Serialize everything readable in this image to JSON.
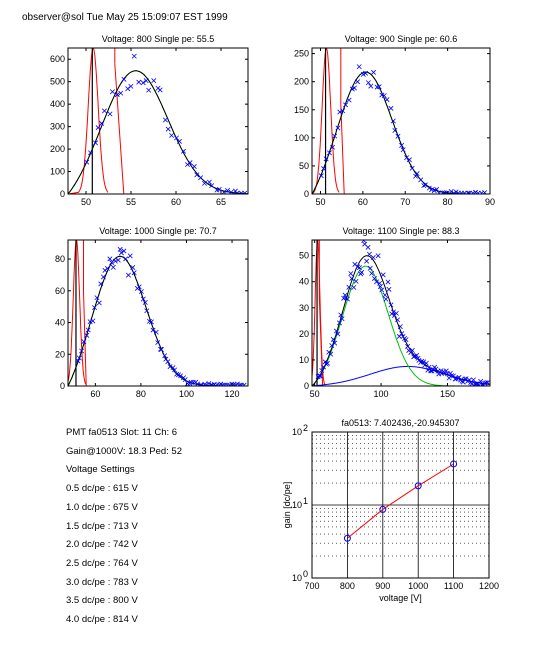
{
  "header": "observer@sol  Tue May 25 15:09:07 EST 1999",
  "info": {
    "pmt_line": "PMT fa0513 Slot: 11 Ch: 6",
    "gain_line": "Gain@1000V: 18.3 Ped: 52",
    "settings_title": "Voltage Settings",
    "settings": [
      "0.5 dc/pe : 615 V",
      "1.0 dc/pe : 675 V",
      "1.5 dc/pe : 713 V",
      "2.0 dc/pe : 742 V",
      "2.5 dc/pe : 764 V",
      "3.0 dc/pe : 783 V",
      "3.5 dc/pe : 800 V",
      "4.0 dc/pe : 814 V"
    ]
  },
  "chart_data": [
    {
      "type": "scatter",
      "title": "Voltage: 800 Single pe: 55.5",
      "xlim": [
        48,
        68
      ],
      "ylim": [
        0,
        650
      ],
      "xticks": [
        50,
        55,
        60,
        65
      ],
      "yticks": [
        0,
        100,
        200,
        300,
        400,
        500,
        600
      ],
      "colors": {
        "points": "#0000ff",
        "total": "#000000",
        "pe": "#00c000",
        "ped": "#ff0000",
        "hist": "#000000"
      },
      "pedestal": {
        "x_line": 50.7,
        "peak_x": 50.8,
        "peak_y": 650,
        "sigma": 0.55,
        "tail_x": 53.2,
        "tail_y": 580,
        "tail_end": 54.2
      },
      "pe_gauss": {
        "mean": 55.5,
        "sigma": 3.6,
        "amp": 550
      },
      "noise": {
        "amp": 0,
        "mean": 0,
        "sigma": 1
      },
      "total_ped_amp": 0,
      "points": {
        "seed": 3,
        "from": 50,
        "to": 68,
        "n": 44,
        "scatter": 0.12
      },
      "line_color": "#ff0000"
    },
    {
      "type": "scatter",
      "title": "Voltage: 900 Single pe: 60.6",
      "xlim": [
        48,
        90
      ],
      "ylim": [
        0,
        260
      ],
      "xticks": [
        50,
        60,
        70,
        80,
        90
      ],
      "yticks": [
        0,
        50,
        100,
        150,
        200,
        250
      ],
      "colors": {
        "points": "#0000ff",
        "total": "#000000",
        "pe": "#00c000",
        "ped": "#ff0000",
        "hist": "#000000"
      },
      "pedestal": {
        "x_line": 51.2,
        "peak_x": 51.4,
        "peak_y": 260,
        "sigma": 1.0,
        "tail_x": 54.8,
        "tail_y": 160,
        "tail_end": 55.6
      },
      "pe_gauss": {
        "mean": 60.6,
        "sigma": 6.3,
        "amp": 218
      },
      "noise": {
        "amp": 0,
        "mean": 0,
        "sigma": 1
      },
      "total_ped_amp": 0,
      "points": {
        "seed": 7,
        "from": 50,
        "to": 89,
        "n": 60,
        "scatter": 0.1
      },
      "line_color": "#ff0000"
    },
    {
      "type": "scatter",
      "title": "Voltage: 1000 Single pe: 70.7",
      "xlim": [
        48,
        127
      ],
      "ylim": [
        0,
        92
      ],
      "xticks": [
        60,
        80,
        100,
        120
      ],
      "yticks": [
        0,
        20,
        40,
        60,
        80
      ],
      "colors": {
        "points": "#0000ff",
        "total": "#000000",
        "pe": "#00c000",
        "ped": "#ff0000",
        "hist": "#000000"
      },
      "pedestal": {
        "x_line": 51.5,
        "peak_x": 51.7,
        "peak_y": 92,
        "sigma": 1.4,
        "tail_x": 54.8,
        "tail_y": 60,
        "tail_end": 56.0
      },
      "pe_gauss": {
        "mean": 70.7,
        "sigma": 11.5,
        "amp": 82
      },
      "noise": {
        "amp": 0,
        "mean": 0,
        "sigma": 1
      },
      "total_ped_amp": 0,
      "points": {
        "seed": 11,
        "from": 52,
        "to": 126,
        "n": 80,
        "scatter": 0.09
      },
      "line_color": "#ff0000"
    },
    {
      "type": "scatter",
      "title": "Voltage: 1100 Single pe: 88.3",
      "xlim": [
        48,
        182
      ],
      "ylim": [
        0,
        56
      ],
      "xticks": [
        50,
        100,
        150
      ],
      "yticks": [
        0,
        10,
        20,
        30,
        40,
        50
      ],
      "colors": {
        "points": "#0000ff",
        "total": "#000000",
        "pe": "#00c000",
        "ped": "#ff0000",
        "hist": "#000000"
      },
      "pedestal": {
        "x_line": 51.8,
        "peak_x": 52.2,
        "peak_y": 56,
        "sigma": 1.8,
        "tail_x": 53.5,
        "tail_y": 34,
        "tail_end": 56.0
      },
      "pe_gauss": {
        "mean": 88.3,
        "sigma": 17.0,
        "amp": 46
      },
      "noise": {
        "amp": 7.5,
        "mean": 120,
        "sigma": 28
      },
      "total_ped_amp": 0,
      "points": {
        "seed": 19,
        "from": 52,
        "to": 181,
        "n": 120,
        "scatter": 0.14
      },
      "line_color": "#ff0000"
    },
    {
      "type": "line",
      "title": "fa0513: 7.402436,-20.945307",
      "xlabel": "voltage [V]",
      "ylabel": "gain [dc/pe]",
      "xlim": [
        700,
        1200
      ],
      "ylim": [
        1,
        100
      ],
      "yscale": "log",
      "xticks": [
        700,
        800,
        900,
        1000,
        1100,
        1200
      ],
      "ytick_labels": [
        {
          "base": "10",
          "exp": "0",
          "value": 1
        },
        {
          "base": "10",
          "exp": "1",
          "value": 10
        },
        {
          "base": "10",
          "exp": "2",
          "value": 100
        }
      ],
      "grid": true,
      "x": [
        800,
        900,
        1000,
        1100
      ],
      "y": [
        3.5,
        8.7,
        18.3,
        36.5
      ],
      "line_color": "#ff0000",
      "marker_color": "#0000ff"
    }
  ]
}
